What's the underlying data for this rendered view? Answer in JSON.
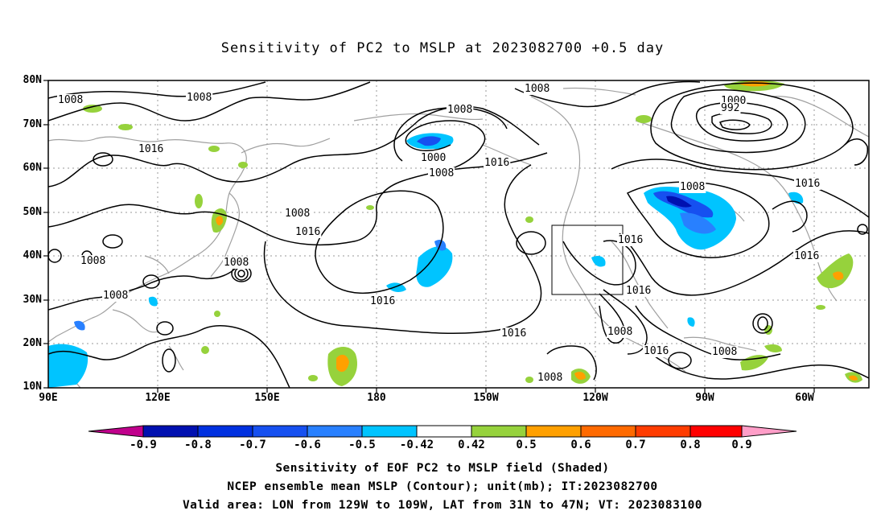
{
  "title": "Sensitivity of PC2 to MSLP at 2023082700 +0.5 day",
  "map": {
    "lat_labels": [
      "80N",
      "70N",
      "60N",
      "50N",
      "40N",
      "30N",
      "20N",
      "10N"
    ],
    "lon_labels": [
      "90E",
      "120E",
      "150E",
      "180",
      "150W",
      "120W",
      "90W",
      "60W"
    ],
    "contour_labels": [
      "1008",
      "1008",
      "1016",
      "1008",
      "1008",
      "1016",
      "1008",
      "1008",
      "1008",
      "1008",
      "1016",
      "1000",
      "1008",
      "1016",
      "1016",
      "1016",
      "1016",
      "1016",
      "1008",
      "1016",
      "1008",
      "1008",
      "1000",
      "992",
      "1008",
      "1016",
      "1016",
      "1016"
    ],
    "box_area": "LON 129W to 109W, LAT 31N to 47N"
  },
  "colorbar": {
    "labels": [
      "-0.9",
      "-0.8",
      "-0.7",
      "-0.6",
      "-0.5",
      "-0.42",
      "0.42",
      "0.5",
      "0.6",
      "0.7",
      "0.8",
      "0.9"
    ],
    "colors": [
      "#c0008c",
      "#0010b0",
      "#0030e0",
      "#1650f0",
      "#2880ff",
      "#00c4ff",
      "#ffffff",
      "#96d23c",
      "#ffa000",
      "#ff6a00",
      "#ff3c00",
      "#ff0000",
      "#ff9ec8"
    ]
  },
  "captions": [
    "Sensitivity of EOF PC2 to MSLP field (Shaded)",
    "NCEP ensemble mean MSLP (Contour); unit(mb); IT:2023082700",
    "Valid area: LON from 129W to 109W, LAT from 31N to 47N; VT: 2023083100"
  ]
}
